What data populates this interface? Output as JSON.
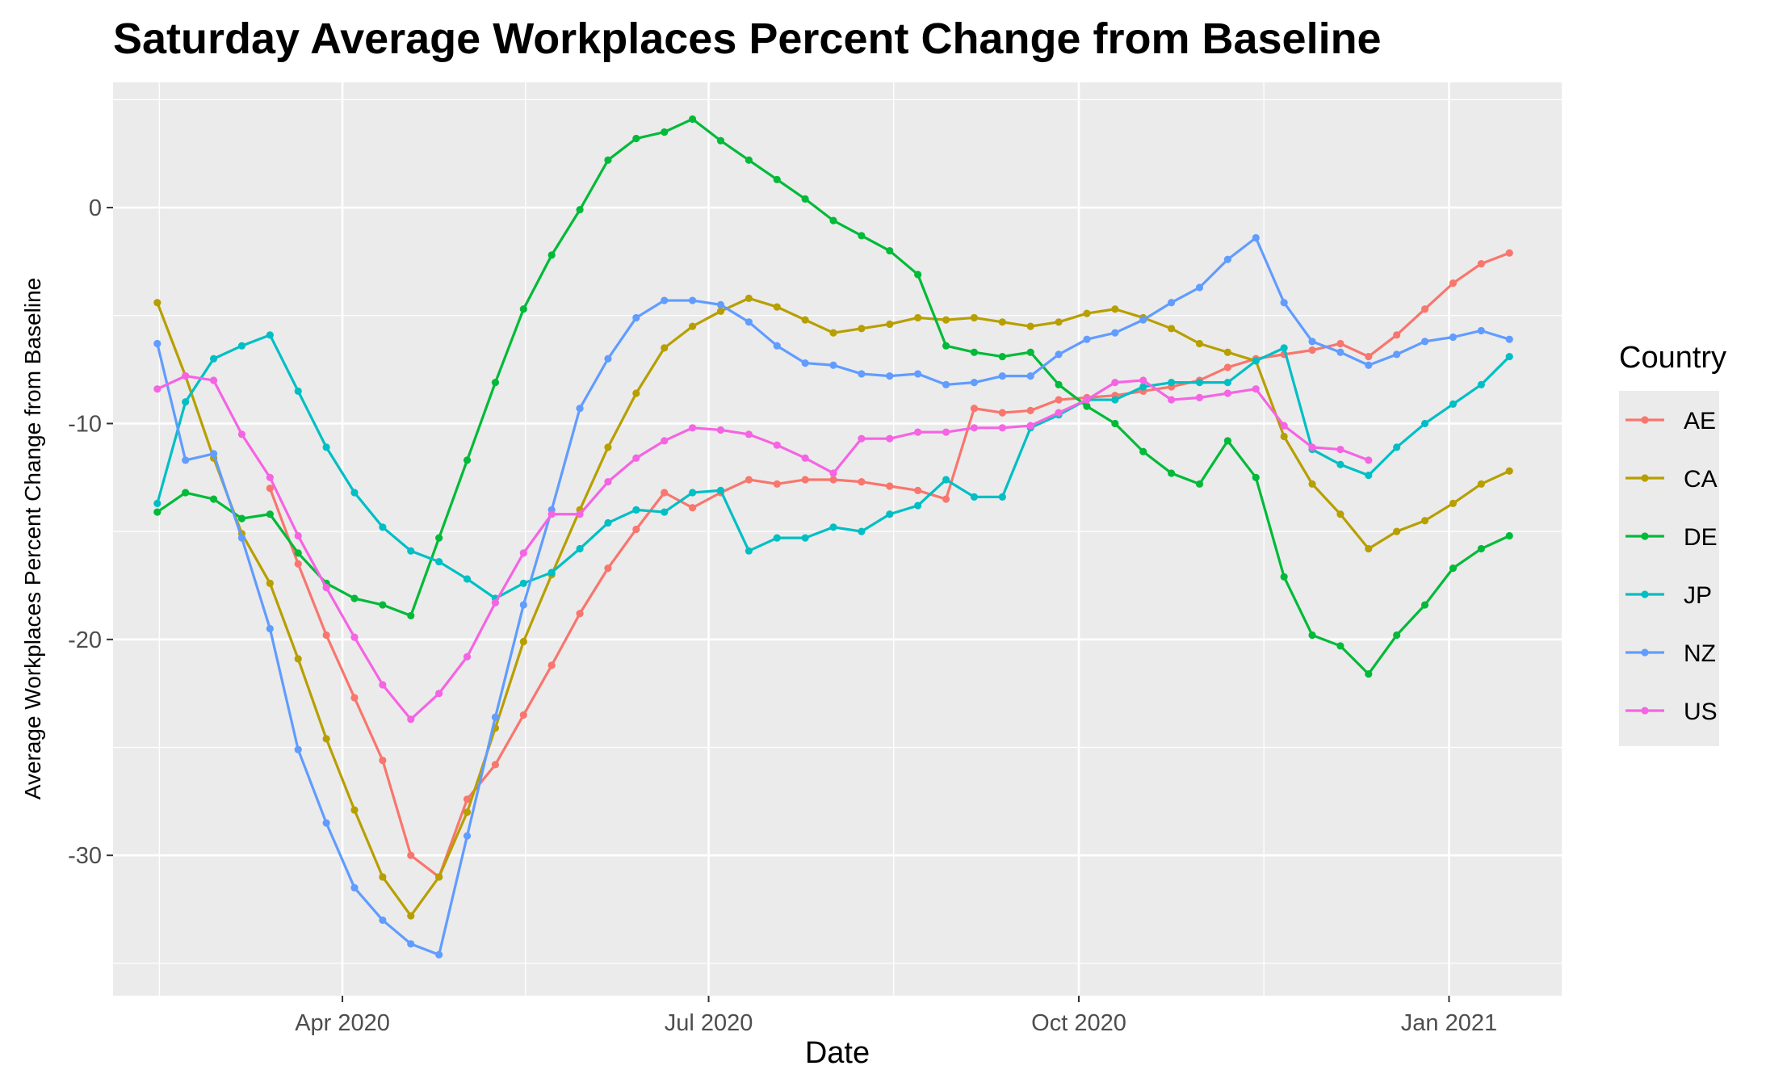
{
  "chart_data": {
    "type": "line",
    "title": "Saturday Average Workplaces Percent Change from Baseline",
    "xlabel": "Date",
    "ylabel": "Average Workplaces Percent Change from Baseline",
    "x_ticks": [
      {
        "date": "2020-04-01",
        "label": "Apr 2020"
      },
      {
        "date": "2020-07-01",
        "label": "Jul 2020"
      },
      {
        "date": "2020-10-01",
        "label": "Oct 2020"
      },
      {
        "date": "2021-01-01",
        "label": "Jan 2021"
      }
    ],
    "y_ticks": [
      0,
      -10,
      -20,
      -30
    ],
    "ylim": [
      -36.5,
      5.8
    ],
    "xlim": [
      "2020-02-04",
      "2021-01-29"
    ],
    "grid": true,
    "legend": {
      "title": "Country",
      "position": "right"
    },
    "x": [
      "2020-02-15",
      "2020-02-22",
      "2020-02-29",
      "2020-03-07",
      "2020-03-14",
      "2020-03-21",
      "2020-03-28",
      "2020-04-04",
      "2020-04-11",
      "2020-04-18",
      "2020-04-25",
      "2020-05-02",
      "2020-05-09",
      "2020-05-16",
      "2020-05-23",
      "2020-05-30",
      "2020-06-06",
      "2020-06-13",
      "2020-06-20",
      "2020-06-27",
      "2020-07-04",
      "2020-07-11",
      "2020-07-18",
      "2020-07-25",
      "2020-08-01",
      "2020-08-08",
      "2020-08-15",
      "2020-08-22",
      "2020-08-29",
      "2020-09-05",
      "2020-09-12",
      "2020-09-19",
      "2020-09-26",
      "2020-10-03",
      "2020-10-10",
      "2020-10-17",
      "2020-10-24",
      "2020-10-31",
      "2020-11-07",
      "2020-11-14",
      "2020-11-21",
      "2020-11-28",
      "2020-12-05",
      "2020-12-12",
      "2020-12-19",
      "2020-12-26",
      "2021-01-02",
      "2021-01-09",
      "2021-01-16"
    ],
    "series": [
      {
        "name": "AE",
        "color": "#F8766D",
        "values": [
          null,
          null,
          null,
          null,
          -13,
          -16.5,
          -19.8,
          -22.7,
          -25.6,
          -30,
          -31,
          -27.4,
          -25.8,
          -23.5,
          -21.2,
          -18.8,
          -16.7,
          -14.9,
          -13.2,
          -13.9,
          -13.2,
          -12.6,
          -12.8,
          -12.6,
          -12.6,
          -12.7,
          -12.9,
          -13.1,
          -13.5,
          -9.3,
          -9.5,
          -9.4,
          -8.9,
          -8.8,
          -8.7,
          -8.5,
          -8.3,
          -8,
          -7.4,
          -7,
          -6.8,
          -6.6,
          -6.3,
          -6.9,
          -5.9,
          -4.7,
          -3.5,
          -2.6,
          -2.1
        ]
      },
      {
        "name": "CA",
        "color": "#B79F00",
        "values": [
          -4.4,
          -7.8,
          -11.6,
          -15.1,
          -17.4,
          -20.9,
          -24.6,
          -27.9,
          -31,
          -32.8,
          -31,
          -28,
          -24.1,
          -20.1,
          -17,
          -14,
          -11.1,
          -8.6,
          -6.5,
          -5.5,
          -4.8,
          -4.2,
          -4.6,
          -5.2,
          -5.8,
          -5.6,
          -5.4,
          -5.1,
          -5.2,
          -5.1,
          -5.3,
          -5.5,
          -5.3,
          -4.9,
          -4.7,
          -5.1,
          -5.6,
          -6.3,
          -6.7,
          -7.1,
          -10.6,
          -12.8,
          -14.2,
          -15.8,
          -15,
          -14.5,
          -13.7,
          -12.8,
          -12.2
        ]
      },
      {
        "name": "DE",
        "color": "#00BA38",
        "values": [
          -14.1,
          -13.2,
          -13.5,
          -14.4,
          -14.2,
          -16,
          -17.4,
          -18.1,
          -18.4,
          -18.9,
          -15.3,
          -11.7,
          -8.1,
          -4.7,
          -2.2,
          -0.1,
          2.2,
          3.2,
          3.5,
          4.1,
          3.1,
          2.2,
          1.3,
          0.4,
          -0.6,
          -1.3,
          -2,
          -3.1,
          -6.4,
          -6.7,
          -6.9,
          -6.7,
          -8.2,
          -9.2,
          -10,
          -11.3,
          -12.3,
          -12.8,
          -10.8,
          -12.5,
          -17.1,
          -19.8,
          -20.3,
          -21.6,
          -19.8,
          -18.4,
          -16.7,
          -15.8,
          -15.2
        ]
      },
      {
        "name": "JP",
        "color": "#00BFC4",
        "values": [
          -13.7,
          -9,
          -7,
          -6.4,
          -5.9,
          -8.5,
          -11.1,
          -13.2,
          -14.8,
          -15.9,
          -16.4,
          -17.2,
          -18.1,
          -17.4,
          -16.9,
          -15.8,
          -14.6,
          -14,
          -14.1,
          -13.2,
          -13.1,
          -15.9,
          -15.3,
          -15.3,
          -14.8,
          -15,
          -14.2,
          -13.8,
          -12.6,
          -13.4,
          -13.4,
          -10.2,
          -9.6,
          -8.9,
          -8.9,
          -8.3,
          -8.1,
          -8.1,
          -8.1,
          -7.1,
          -6.5,
          -11.2,
          -11.9,
          -12.4,
          -11.1,
          -10,
          -9.1,
          -8.2,
          -6.9
        ]
      },
      {
        "name": "NZ",
        "color": "#619CFF",
        "values": [
          -6.3,
          -11.7,
          -11.4,
          -15.3,
          -19.5,
          -25.1,
          -28.5,
          -31.5,
          -33,
          -34.1,
          -34.6,
          -29.1,
          -23.6,
          -18.4,
          -14,
          -9.3,
          -7,
          -5.1,
          -4.3,
          -4.3,
          -4.5,
          -5.3,
          -6.4,
          -7.2,
          -7.3,
          -7.7,
          -7.8,
          -7.7,
          -8.2,
          -8.1,
          -7.8,
          -7.8,
          -6.8,
          -6.1,
          -5.8,
          -5.2,
          -4.4,
          -3.7,
          -2.4,
          -1.4,
          -4.4,
          -6.2,
          -6.7,
          -7.3,
          -6.8,
          -6.2,
          -6,
          -5.7,
          -6.1
        ]
      },
      {
        "name": "US",
        "color": "#F564E3",
        "values": [
          -8.4,
          -7.8,
          -8,
          -10.5,
          -12.5,
          -15.2,
          -17.6,
          -19.9,
          -22.1,
          -23.7,
          -22.5,
          -20.8,
          -18.3,
          -16,
          -14.2,
          -14.2,
          -12.7,
          -11.6,
          -10.8,
          -10.2,
          -10.3,
          -10.5,
          -11,
          -11.6,
          -12.3,
          -10.7,
          -10.7,
          -10.4,
          -10.4,
          -10.2,
          -10.2,
          -10.1,
          -9.5,
          -8.9,
          -8.1,
          -8,
          -8.9,
          -8.8,
          -8.6,
          -8.4,
          -10.1,
          -11.1,
          -11.2,
          -11.7,
          null,
          null,
          null,
          null,
          null
        ]
      }
    ]
  }
}
